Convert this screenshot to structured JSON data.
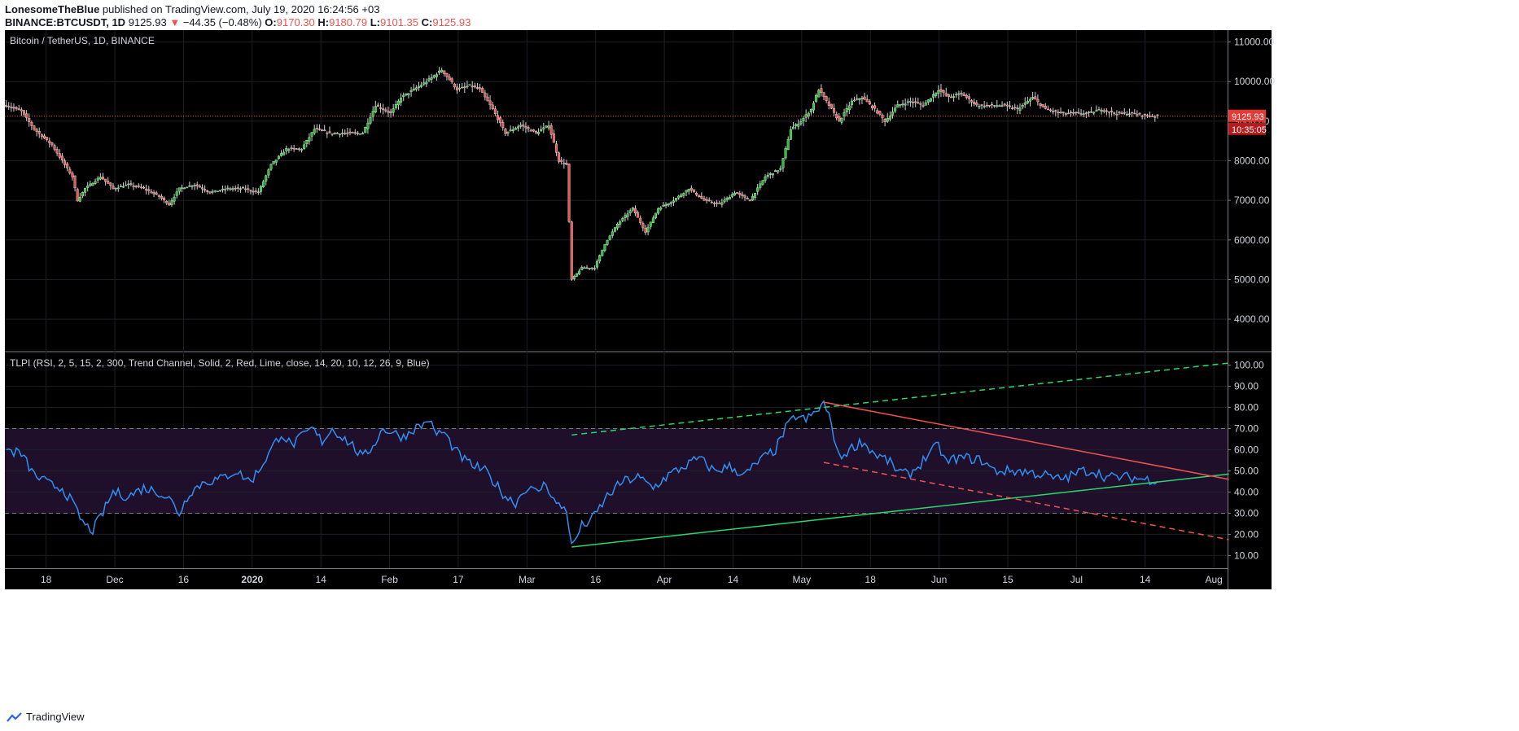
{
  "header": {
    "author": "LonesomeTheBlue",
    "published_text": "published on TradingView.com, July 19, 2020 16:24:56 +03",
    "symbol": "BINANCE:BTCUSDT, 1D",
    "last": "9125.93",
    "down_arrow": "▼",
    "change": "−44.35 (−0.48%)",
    "o_label": "O:",
    "o": "9170.30",
    "h_label": "H:",
    "h": "9180.79",
    "l_label": "L:",
    "l": "9101.35",
    "c_label": "C:",
    "c": "9125.93"
  },
  "footer": {
    "brand": "TradingView"
  },
  "chart_data": [
    {
      "type": "candlestick",
      "title": "Bitcoin / TetherUS, 1D, BINANCE",
      "ylim": [
        3200,
        11300
      ],
      "y_ticks": [
        "4000.00",
        "5000.00",
        "6000.00",
        "7000.00",
        "8000.00",
        "9000.00",
        "10000.00",
        "11000.00"
      ],
      "last_price_label": "9125.93",
      "countdown_label": "10:35:05",
      "last_price": 9125.93,
      "x_ticks": [
        "18",
        "Dec",
        "16",
        "2020",
        "14",
        "Feb",
        "17",
        "Mar",
        "16",
        "Apr",
        "14",
        "May",
        "18",
        "Jun",
        "15",
        "Jul",
        "14",
        "Aug"
      ],
      "anchors": [
        [
          0,
          9400
        ],
        [
          6,
          9250
        ],
        [
          11,
          8800
        ],
        [
          18,
          8400
        ],
        [
          22,
          8000
        ],
        [
          26,
          7600
        ],
        [
          28,
          7000
        ],
        [
          31,
          7300
        ],
        [
          37,
          7600
        ],
        [
          42,
          7300
        ],
        [
          48,
          7400
        ],
        [
          54,
          7300
        ],
        [
          60,
          7100
        ],
        [
          64,
          6900
        ],
        [
          68,
          7300
        ],
        [
          74,
          7400
        ],
        [
          80,
          7200
        ],
        [
          87,
          7300
        ],
        [
          93,
          7300
        ],
        [
          99,
          7200
        ],
        [
          104,
          7900
        ],
        [
          110,
          8300
        ],
        [
          116,
          8300
        ],
        [
          121,
          8800
        ],
        [
          127,
          8700
        ],
        [
          134,
          8700
        ],
        [
          140,
          8700
        ],
        [
          145,
          9400
        ],
        [
          151,
          9200
        ],
        [
          155,
          9600
        ],
        [
          160,
          9800
        ],
        [
          165,
          10000
        ],
        [
          171,
          10300
        ],
        [
          177,
          9800
        ],
        [
          182,
          9900
        ],
        [
          186,
          9800
        ],
        [
          191,
          9300
        ],
        [
          196,
          8700
        ],
        [
          202,
          8900
        ],
        [
          208,
          8700
        ],
        [
          213,
          8900
        ],
        [
          217,
          8000
        ],
        [
          220,
          7900
        ],
        [
          222,
          5000
        ],
        [
          226,
          5300
        ],
        [
          231,
          5300
        ],
        [
          235,
          5900
        ],
        [
          240,
          6400
        ],
        [
          246,
          6800
        ],
        [
          251,
          6200
        ],
        [
          256,
          6800
        ],
        [
          262,
          7000
        ],
        [
          268,
          7300
        ],
        [
          274,
          7000
        ],
        [
          280,
          6900
        ],
        [
          286,
          7200
        ],
        [
          292,
          7000
        ],
        [
          298,
          7600
        ],
        [
          304,
          7800
        ],
        [
          308,
          8800
        ],
        [
          312,
          9000
        ],
        [
          316,
          9300
        ],
        [
          319,
          9800
        ],
        [
          323,
          9400
        ],
        [
          327,
          9000
        ],
        [
          332,
          9500
        ],
        [
          336,
          9600
        ],
        [
          341,
          9300
        ],
        [
          345,
          9000
        ],
        [
          350,
          9400
        ],
        [
          355,
          9500
        ],
        [
          360,
          9400
        ],
        [
          366,
          9800
        ],
        [
          370,
          9600
        ],
        [
          375,
          9700
        ],
        [
          381,
          9400
        ],
        [
          386,
          9400
        ],
        [
          391,
          9400
        ],
        [
          397,
          9300
        ],
        [
          403,
          9600
        ],
        [
          408,
          9300
        ],
        [
          414,
          9200
        ],
        [
          419,
          9200
        ],
        [
          425,
          9200
        ],
        [
          430,
          9300
        ],
        [
          435,
          9200
        ],
        [
          441,
          9200
        ],
        [
          447,
          9150
        ],
        [
          452,
          9126
        ]
      ]
    },
    {
      "type": "line",
      "title": "TLPI (RSI, 2, 5, 15, 2, 300, Trend Channel, Solid, 2, Red, Lime, close, 14, 20, 10, 12, 26, 9, Blue)",
      "ylim": [
        4,
        106
      ],
      "y_ticks": [
        "10.00",
        "20.00",
        "30.00",
        "40.00",
        "50.00",
        "60.00",
        "70.00",
        "80.00",
        "90.00",
        "100.00"
      ],
      "band": [
        30,
        70
      ],
      "anchors": [
        [
          0,
          60
        ],
        [
          6,
          58
        ],
        [
          11,
          48
        ],
        [
          18,
          43
        ],
        [
          22,
          42
        ],
        [
          26,
          35
        ],
        [
          28,
          30
        ],
        [
          31,
          24
        ],
        [
          34,
          22
        ],
        [
          37,
          28
        ],
        [
          42,
          40
        ],
        [
          48,
          38
        ],
        [
          54,
          42
        ],
        [
          60,
          40
        ],
        [
          64,
          37
        ],
        [
          68,
          30
        ],
        [
          72,
          40
        ],
        [
          78,
          45
        ],
        [
          84,
          46
        ],
        [
          90,
          50
        ],
        [
          96,
          45
        ],
        [
          100,
          52
        ],
        [
          104,
          60
        ],
        [
          108,
          68
        ],
        [
          112,
          62
        ],
        [
          116,
          66
        ],
        [
          120,
          70
        ],
        [
          124,
          64
        ],
        [
          128,
          70
        ],
        [
          132,
          66
        ],
        [
          136,
          62
        ],
        [
          140,
          56
        ],
        [
          144,
          62
        ],
        [
          148,
          70
        ],
        [
          152,
          68
        ],
        [
          156,
          66
        ],
        [
          160,
          70
        ],
        [
          164,
          72
        ],
        [
          166,
          75
        ],
        [
          168,
          68
        ],
        [
          172,
          68
        ],
        [
          176,
          60
        ],
        [
          180,
          55
        ],
        [
          184,
          52
        ],
        [
          188,
          50
        ],
        [
          192,
          44
        ],
        [
          196,
          38
        ],
        [
          200,
          35
        ],
        [
          204,
          42
        ],
        [
          208,
          40
        ],
        [
          212,
          44
        ],
        [
          216,
          34
        ],
        [
          220,
          32
        ],
        [
          222,
          14
        ],
        [
          226,
          24
        ],
        [
          230,
          27
        ],
        [
          236,
          38
        ],
        [
          242,
          45
        ],
        [
          248,
          47
        ],
        [
          254,
          42
        ],
        [
          260,
          48
        ],
        [
          266,
          52
        ],
        [
          272,
          56
        ],
        [
          278,
          50
        ],
        [
          284,
          52
        ],
        [
          290,
          48
        ],
        [
          296,
          55
        ],
        [
          302,
          60
        ],
        [
          306,
          70
        ],
        [
          310,
          76
        ],
        [
          314,
          74
        ],
        [
          318,
          78
        ],
        [
          321,
          82
        ],
        [
          324,
          72
        ],
        [
          327,
          56
        ],
        [
          331,
          60
        ],
        [
          336,
          64
        ],
        [
          341,
          58
        ],
        [
          346,
          55
        ],
        [
          350,
          50
        ],
        [
          354,
          48
        ],
        [
          358,
          52
        ],
        [
          362,
          58
        ],
        [
          366,
          62
        ],
        [
          369,
          54
        ],
        [
          373,
          56
        ],
        [
          378,
          56
        ],
        [
          383,
          55
        ],
        [
          388,
          50
        ],
        [
          393,
          50
        ],
        [
          398,
          50
        ],
        [
          403,
          49
        ],
        [
          408,
          48
        ],
        [
          412,
          46
        ],
        [
          417,
          47
        ],
        [
          422,
          50
        ],
        [
          427,
          50
        ],
        [
          432,
          47
        ],
        [
          437,
          47
        ],
        [
          441,
          47
        ],
        [
          447,
          46
        ],
        [
          452,
          46
        ]
      ]
    }
  ],
  "colors": {
    "up": "#26a69a",
    "up_body": "#22c431",
    "down": "#ef5350",
    "rsi": "#2f8ff2",
    "channel_upper": "#ef5350",
    "channel_lower": "#26d96a",
    "band_fill": "#1f0f2b"
  }
}
